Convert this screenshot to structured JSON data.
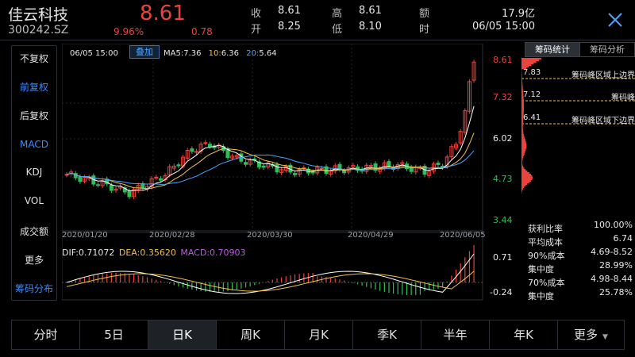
{
  "header": {
    "name": "佳云科技",
    "code": "300242.SZ",
    "price": "8.61",
    "change_pct": "9.96%",
    "change": "0.78",
    "close_label": "收",
    "close_value": "8.61",
    "open_label": "开",
    "open_value": "8.25",
    "high_label": "高",
    "high_value": "8.61",
    "low_label": "低",
    "low_value": "8.10",
    "amount_label": "额",
    "amount_value": "17.9亿",
    "time_label": "时",
    "time_value": "06/05 15:00"
  },
  "left_menu": [
    {
      "label": "不复权",
      "active": false
    },
    {
      "label": "前复权",
      "active": true
    },
    {
      "label": "后复权",
      "active": false
    },
    {
      "label": "MACD",
      "active": true
    },
    {
      "label": "KDJ",
      "active": false
    },
    {
      "label": "VOL",
      "active": false
    },
    {
      "label": "成交额",
      "active": false
    },
    {
      "label": "更多",
      "active": false
    },
    {
      "label": "筹码分布",
      "active": true
    }
  ],
  "kline": {
    "timestamp": "06/05 15:00",
    "overlay_button": "叠加",
    "ma5_label": "MA5:",
    "ma5_value": "7.36",
    "ma10_label": "10:",
    "ma10_value": "6.36",
    "ma20_label": "20:",
    "ma20_value": "5.64",
    "y_ticks": [
      "8.61",
      "7.32",
      "6.02",
      "4.73",
      "3.44"
    ],
    "dates": [
      "2020/01/20",
      "2020/02/28",
      "2020/03/30",
      "2020/04/29",
      "2020/06/05"
    ]
  },
  "macd": {
    "dif": "DIF:0.71072",
    "dea": "DEA:0.35620",
    "macd": "MACD:0.70903",
    "y_top": "0.71",
    "y_bottom": "-0.24"
  },
  "right_panel": {
    "tab_active": "筹码统计",
    "tab_other": "筹码分析",
    "upper_price": "7.83",
    "upper_label": "筹码峰区域上边界",
    "peak_price": "7.12",
    "peak_label": "筹码峰",
    "lower_price": "6.41",
    "lower_label": "筹码峰区域下边界",
    "stats": [
      {
        "label": "获利比率",
        "value": "100.00%"
      },
      {
        "label": "平均成本",
        "value": "6.74"
      },
      {
        "label": "90%成本",
        "value": "4.69-8.52"
      },
      {
        "label": "集中度",
        "value": "28.99%"
      },
      {
        "label": "70%成本",
        "value": "4.98-8.44"
      },
      {
        "label": "集中度",
        "value": "25.78%"
      }
    ]
  },
  "tabs": [
    {
      "label": "分时",
      "active": false
    },
    {
      "label": "5日",
      "active": false
    },
    {
      "label": "日K",
      "active": true
    },
    {
      "label": "周K",
      "active": false
    },
    {
      "label": "月K",
      "active": false
    },
    {
      "label": "季K",
      "active": false
    },
    {
      "label": "半年",
      "active": false
    },
    {
      "label": "年K",
      "active": false
    },
    {
      "label": "更多",
      "active": false
    }
  ],
  "colors": {
    "up": "#e8433d",
    "down": "#2fbd5a",
    "ma5": "#ffffff",
    "ma10": "#f5c242",
    "ma20": "#4aa3ff",
    "macd_text": "#c058e8"
  }
}
